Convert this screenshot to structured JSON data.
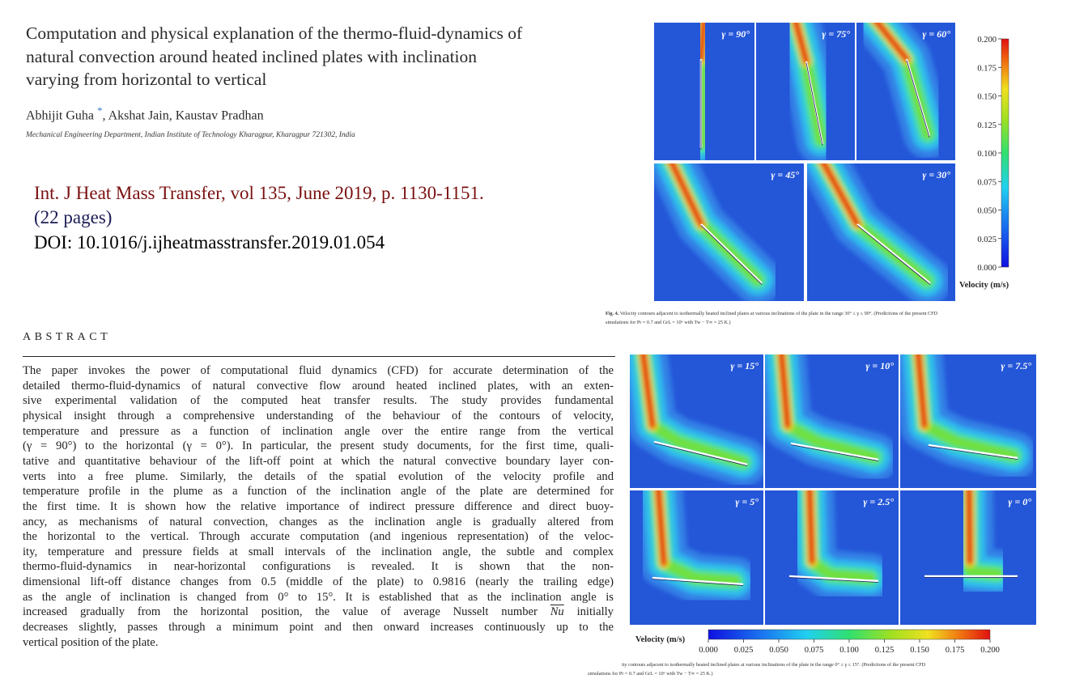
{
  "paper": {
    "title_lines": [
      "Computation and physical explanation of the thermo-fluid-dynamics of",
      "natural convection around heated inclined plates with inclination",
      "varying from horizontal to vertical"
    ],
    "author_line": [
      "Abhijit Guha ",
      "*",
      ", Akshat Jain, Kaustav Pradhan"
    ],
    "affiliation": "Mechanical Engineering Department, Indian Institute of Technology Kharagpur, Kharagpur 721302, India",
    "citation": [
      "Int. J Heat Mass Transfer, vol 135, June 2019, p. 1130-1151.",
      "(22 pages)",
      "DOI: 10.1016/j.ijheatmasstransfer.2019.01.054"
    ],
    "abstract_heading": "ABSTRACT",
    "abstract_lines": [
      "The paper invokes the power of computational fluid dynamics (CFD) for accurate determination of the",
      "detailed thermo-fluid-dynamics of natural convective flow around heated inclined plates, with an exten-",
      "sive experimental validation of the computed heat transfer results. The study provides fundamental",
      "physical insight through a comprehensive understanding of the behaviour of the contours of velocity,",
      "temperature and pressure as a function of inclination angle over the entire range from the vertical",
      "(γ = 90°) to the horizontal (γ = 0°). In particular, the present study documents, for the first time, quali-",
      "tative and quantitative behaviour of the lift-off point at which the natural convective boundary layer con-",
      "verts into a free plume. Similarly, the details of the spatial evolution of the velocity profile and",
      "temperature profile in the plume as a function of the inclination angle of the plate are determined for",
      "the first time. It is shown how the relative importance of indirect pressure difference and direct buoy-",
      "ancy, as mechanisms of natural convection, changes as the inclination angle is gradually altered from",
      "the horizontal to the vertical. Through accurate computation (and ingenious representation) of the veloc-",
      "ity, temperature and pressure fields at small intervals of the inclination angle, the subtle and complex",
      "thermo-fluid-dynamics in near-horizontal configurations is revealed. It is shown that the non-",
      "dimensional lift-off distance changes from 0.5 (middle of the plate) to 0.9816 (nearly the trailing edge)",
      "as the angle of inclination is changed from 0° to 15°. It is established that as the inclination angle is",
      [
        "increased gradually from the horizontal position, the value of average Nusselt number ",
        "Nu",
        " initially"
      ],
      "decreases slightly, passes through a minimum point and then onward increases continuously up to the",
      "vertical position of the plate."
    ]
  },
  "figures": {
    "fig4": {
      "panels": [
        "γ = 90°",
        "γ = 75°",
        "γ = 60°",
        "γ = 45°",
        "γ = 30°"
      ],
      "colorbar": {
        "label": "Velocity (m/s)",
        "lim": [
          0,
          0.2
        ],
        "ticks": [
          {
            "value": 0,
            "label": "0.000"
          },
          {
            "value": 0.025,
            "label": "0.025"
          },
          {
            "value": 0.05,
            "label": "0.050"
          },
          {
            "value": 0.075,
            "label": "0.075"
          },
          {
            "value": 0.1,
            "label": "0.100"
          },
          {
            "value": 0.125,
            "label": "0.125"
          },
          {
            "value": 0.15,
            "label": "0.150"
          },
          {
            "value": 0.175,
            "label": "0.175"
          },
          {
            "value": 0.2,
            "label": "0.200"
          }
        ]
      },
      "caption_label": "Fig. 4.",
      "caption_lines": [
        " Velocity contours adjacent to isothermally heated inclined plates at various inclinations of the plate in the range 30° ≤ γ ≤ 90°. (Predictions of the present CFD",
        "simulations for Pr = 0.7 and GrL = 10⁶ with Tw − T∞ = 25 K.)"
      ]
    },
    "fig5": {
      "panels": [
        "γ = 15°",
        "γ = 10°",
        "γ = 7.5°",
        "γ = 5°",
        "γ = 2.5°",
        "γ = 0°"
      ],
      "colorbar": {
        "label": "Velocity (m/s)",
        "lim": [
          0,
          0.2
        ],
        "ticks": [
          {
            "value": 0,
            "label": "0.000"
          },
          {
            "value": 0.025,
            "label": "0.025"
          },
          {
            "value": 0.05,
            "label": "0.050"
          },
          {
            "value": 0.075,
            "label": "0.075"
          },
          {
            "value": 0.1,
            "label": "0.100"
          },
          {
            "value": 0.125,
            "label": "0.125"
          },
          {
            "value": 0.15,
            "label": "0.150"
          },
          {
            "value": 0.175,
            "label": "0.175"
          },
          {
            "value": 0.2,
            "label": "0.200"
          }
        ]
      },
      "caption_lines": [
        "ity contours adjacent to isothermally heated inclined plates at various inclinations of the plate in the range 0° ≤ γ ≤ 15°. (Predictions of the present CFD",
        "simulations for Pr = 0.7 and GrL = 10⁶ with Tw − T∞ = 25 K.)"
      ]
    }
  }
}
